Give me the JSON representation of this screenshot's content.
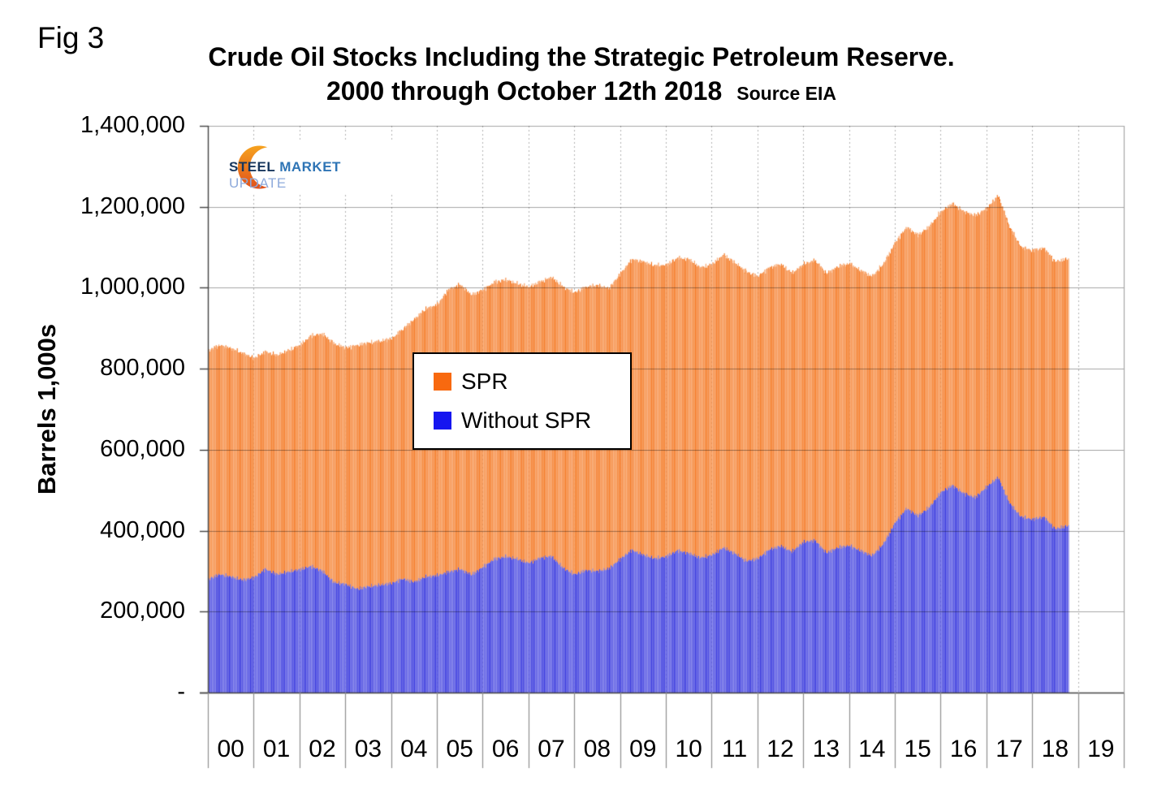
{
  "labels": {
    "fig": "Fig 3"
  },
  "title": {
    "line1": "Crude Oil Stocks Including the Strategic Petroleum Reserve.",
    "line2": "2000 through October 12th 2018",
    "source": "Source EIA"
  },
  "axes": {
    "y_label": "Barrels 1,000s"
  },
  "logo": {
    "steel": "STEEL",
    "market": "MARKET",
    "update": "UPDATE",
    "crescent_top_color": "#f6a21e",
    "crescent_bottom_color": "#e0511c"
  },
  "legend": {
    "items": [
      {
        "label": "SPR",
        "color": "#f8690f"
      },
      {
        "label": "Without SPR",
        "color": "#1616f0"
      }
    ]
  },
  "colors": {
    "bar_orange": "#f4731a",
    "bar_blue": "#2e2edc",
    "stripe_overlay": "rgba(255,255,255,0.45)",
    "gridline": "#a6a6a6",
    "dashed_gridline": "#b3b3b3",
    "axis": "#444444",
    "tick": "#8f8f8f"
  },
  "chart_data": {
    "type": "bar",
    "stacked": true,
    "bar_period": "weekly",
    "title": "Crude Oil Stocks Including the Strategic Petroleum Reserve. 2000 through October 12th 2018",
    "xlabel": "",
    "ylabel": "Barrels 1,000s",
    "ylim": [
      0,
      1400000
    ],
    "x_start": 2000.0,
    "x_step": 0.25,
    "x_end_of_data": 2018.783,
    "x_axis_range": [
      2000,
      2020
    ],
    "grid": true,
    "legend_position": "center-inside",
    "x_tick_labels": [
      "00",
      "01",
      "02",
      "03",
      "04",
      "05",
      "06",
      "07",
      "08",
      "09",
      "10",
      "11",
      "12",
      "13",
      "14",
      "15",
      "16",
      "17",
      "18",
      "19"
    ],
    "y_tick_labels": [
      "1,400,000",
      "1,200,000",
      "1,000,000",
      "800,000",
      "600,000",
      "400,000",
      "200,000",
      "-"
    ],
    "series": [
      {
        "name": "Without SPR",
        "color": "#2e2edc",
        "values": [
          280000,
          292000,
          286000,
          278000,
          284000,
          305000,
          292000,
          298000,
          304000,
          312000,
          300000,
          272000,
          268000,
          256000,
          262000,
          266000,
          270000,
          281000,
          273000,
          286000,
          289000,
          298000,
          305000,
          291000,
          310000,
          330000,
          336000,
          330000,
          320000,
          333000,
          337000,
          308000,
          292000,
          302000,
          300000,
          306000,
          330000,
          352000,
          340000,
          331000,
          336000,
          351000,
          344000,
          333000,
          340000,
          358000,
          344000,
          325000,
          331000,
          353000,
          362000,
          348000,
          372000,
          376000,
          345000,
          358000,
          363000,
          350000,
          338000,
          368000,
          420000,
          455000,
          437000,
          458000,
          495000,
          512000,
          492000,
          482000,
          508000,
          532000,
          468000,
          434000,
          428000,
          434000,
          404000,
          412000
        ]
      },
      {
        "name": "SPR",
        "color": "#f4731a",
        "values": [
          565000,
          566000,
          564000,
          560000,
          542000,
          537000,
          541000,
          547000,
          554000,
          570000,
          586000,
          590000,
          584000,
          602000,
          602000,
          602000,
          604000,
          617000,
          649000,
          662000,
          669000,
          698000,
          703000,
          691000,
          685000,
          684000,
          684000,
          680000,
          682000,
          682000,
          689000,
          694000,
          696000,
          700000,
          706000,
          692000,
          705000,
          718000,
          724000,
          724000,
          720000,
          723000,
          726000,
          717000,
          718000,
          724000,
          718000,
          715000,
          697000,
          697000,
          696000,
          688000,
          686000,
          692000,
          690000,
          694000,
          697000,
          692000,
          690000,
          692000,
          692000,
          695000,
          693000,
          694000,
          693000,
          696000,
          696000,
          696000,
          688000,
          696000,
          682000,
          666000,
          664000,
          664000,
          660000,
          660000
        ]
      }
    ]
  }
}
